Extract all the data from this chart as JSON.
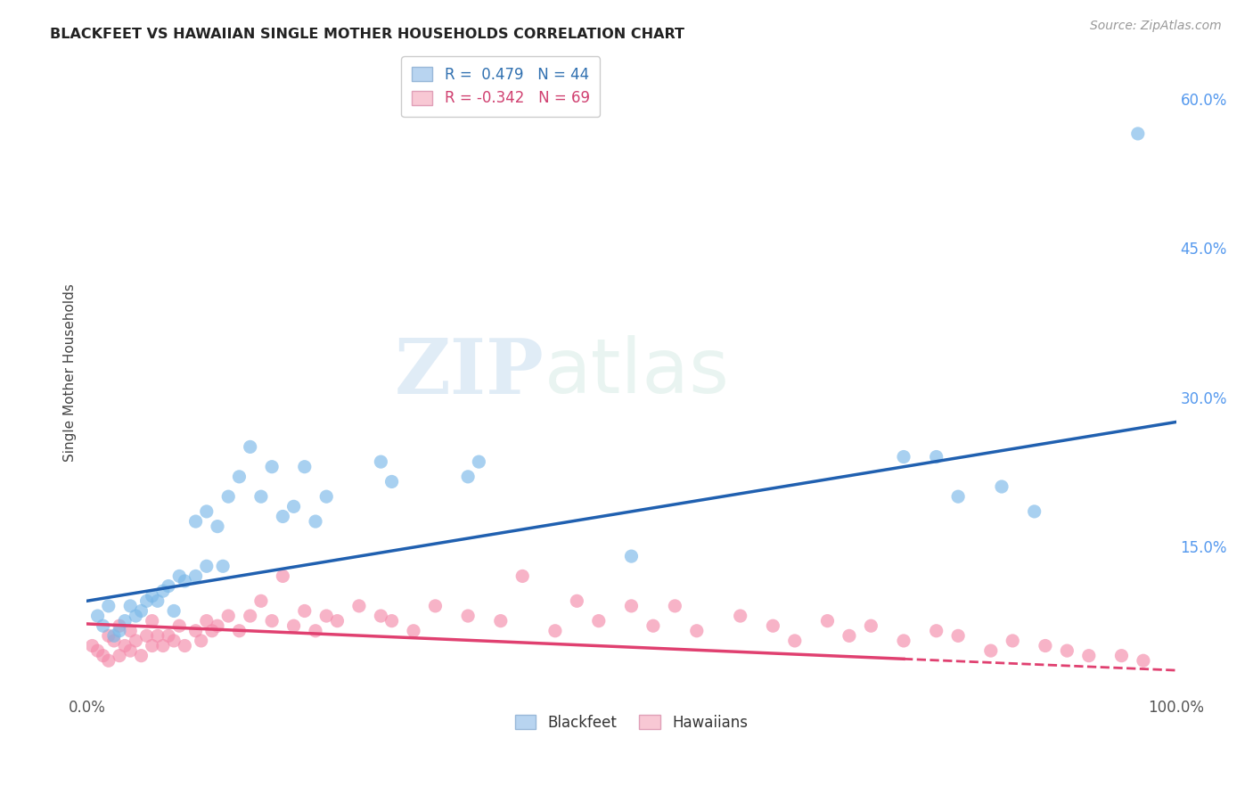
{
  "title": "BLACKFEET VS HAWAIIAN SINGLE MOTHER HOUSEHOLDS CORRELATION CHART",
  "source": "Source: ZipAtlas.com",
  "ylabel": "Single Mother Households",
  "xlim": [
    0,
    1.0
  ],
  "ylim": [
    0.0,
    0.65
  ],
  "xticks": [
    0.0,
    0.2,
    0.4,
    0.6,
    0.8,
    1.0
  ],
  "xticklabels": [
    "0.0%",
    "",
    "",
    "",
    "",
    "100.0%"
  ],
  "yticks_right": [
    0.0,
    0.15,
    0.3,
    0.45,
    0.6
  ],
  "yticklabels_right": [
    "",
    "15.0%",
    "30.0%",
    "45.0%",
    "60.0%"
  ],
  "blackfeet_color": "#7ab8e8",
  "hawaiian_color": "#f48aaa",
  "trendline_blackfeet_color": "#2060b0",
  "trendline_hawaiian_color": "#e04070",
  "blackfeet_x": [
    0.01,
    0.015,
    0.02,
    0.025,
    0.03,
    0.035,
    0.04,
    0.045,
    0.05,
    0.055,
    0.06,
    0.065,
    0.07,
    0.075,
    0.08,
    0.085,
    0.09,
    0.1,
    0.1,
    0.11,
    0.11,
    0.12,
    0.125,
    0.13,
    0.14,
    0.15,
    0.16,
    0.17,
    0.18,
    0.19,
    0.2,
    0.21,
    0.22,
    0.27,
    0.28,
    0.35,
    0.36,
    0.5,
    0.75,
    0.78,
    0.8,
    0.84,
    0.87,
    0.965
  ],
  "blackfeet_y": [
    0.08,
    0.07,
    0.09,
    0.06,
    0.065,
    0.075,
    0.09,
    0.08,
    0.085,
    0.095,
    0.1,
    0.095,
    0.105,
    0.11,
    0.085,
    0.12,
    0.115,
    0.12,
    0.175,
    0.13,
    0.185,
    0.17,
    0.13,
    0.2,
    0.22,
    0.25,
    0.2,
    0.23,
    0.18,
    0.19,
    0.23,
    0.175,
    0.2,
    0.235,
    0.215,
    0.22,
    0.235,
    0.14,
    0.24,
    0.24,
    0.2,
    0.21,
    0.185,
    0.565
  ],
  "hawaiian_x": [
    0.005,
    0.01,
    0.015,
    0.02,
    0.02,
    0.025,
    0.03,
    0.03,
    0.035,
    0.04,
    0.04,
    0.045,
    0.05,
    0.055,
    0.06,
    0.06,
    0.065,
    0.07,
    0.075,
    0.08,
    0.085,
    0.09,
    0.1,
    0.105,
    0.11,
    0.115,
    0.12,
    0.13,
    0.14,
    0.15,
    0.16,
    0.17,
    0.18,
    0.19,
    0.2,
    0.21,
    0.22,
    0.23,
    0.25,
    0.27,
    0.28,
    0.3,
    0.32,
    0.35,
    0.38,
    0.4,
    0.43,
    0.45,
    0.47,
    0.5,
    0.52,
    0.54,
    0.56,
    0.6,
    0.63,
    0.65,
    0.68,
    0.7,
    0.72,
    0.75,
    0.78,
    0.8,
    0.83,
    0.85,
    0.88,
    0.9,
    0.92,
    0.95,
    0.97
  ],
  "hawaiian_y": [
    0.05,
    0.045,
    0.04,
    0.035,
    0.06,
    0.055,
    0.04,
    0.07,
    0.05,
    0.045,
    0.065,
    0.055,
    0.04,
    0.06,
    0.05,
    0.075,
    0.06,
    0.05,
    0.06,
    0.055,
    0.07,
    0.05,
    0.065,
    0.055,
    0.075,
    0.065,
    0.07,
    0.08,
    0.065,
    0.08,
    0.095,
    0.075,
    0.12,
    0.07,
    0.085,
    0.065,
    0.08,
    0.075,
    0.09,
    0.08,
    0.075,
    0.065,
    0.09,
    0.08,
    0.075,
    0.12,
    0.065,
    0.095,
    0.075,
    0.09,
    0.07,
    0.09,
    0.065,
    0.08,
    0.07,
    0.055,
    0.075,
    0.06,
    0.07,
    0.055,
    0.065,
    0.06,
    0.045,
    0.055,
    0.05,
    0.045,
    0.04,
    0.04,
    0.035
  ],
  "trendline_b_x0": 0.0,
  "trendline_b_y0": 0.095,
  "trendline_b_x1": 1.0,
  "trendline_b_y1": 0.275,
  "trendline_h_x0": 0.0,
  "trendline_h_y0": 0.072,
  "trendline_h_x1": 1.0,
  "trendline_h_y1": 0.025,
  "trendline_h_solid_end": 0.75,
  "watermark_zip": "ZIP",
  "watermark_atlas": "atlas",
  "background_color": "#ffffff",
  "grid_color": "#c8c8c8"
}
